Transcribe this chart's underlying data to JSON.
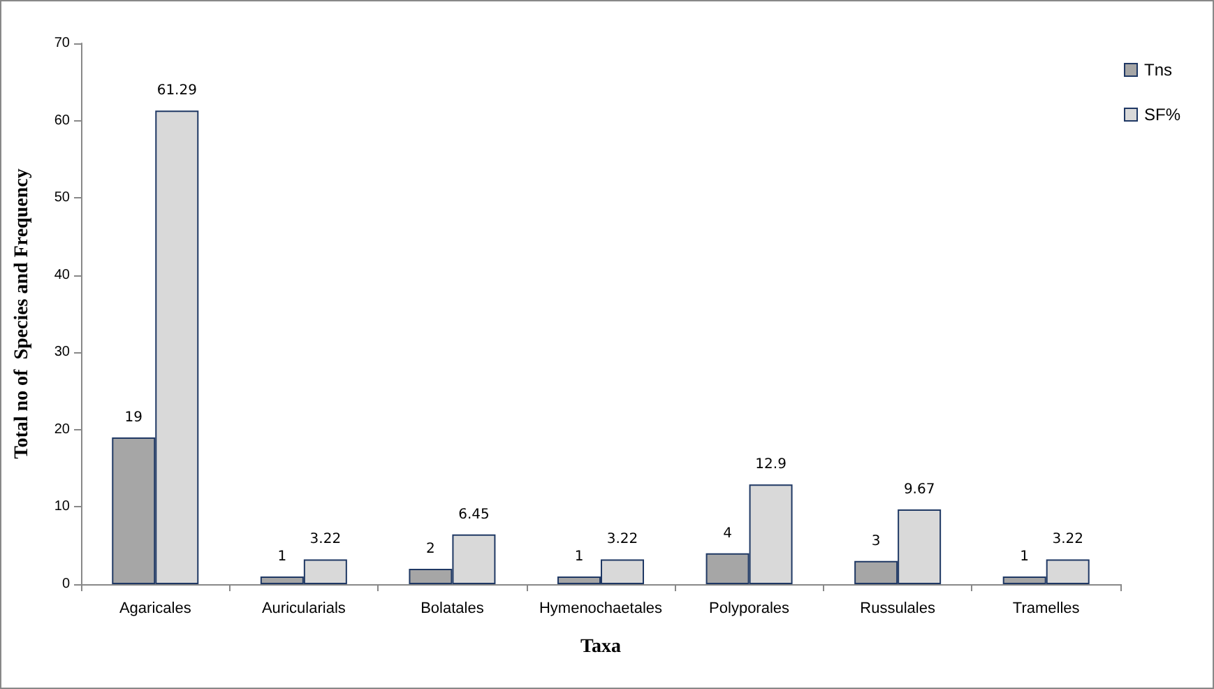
{
  "chart_data": {
    "type": "bar",
    "xlabel": "Taxa",
    "ylabel": "Total no of  Species and Frequency",
    "categories": [
      "Agaricales",
      "Auricularials",
      "Bolatales",
      "Hymenochaetales",
      "Polyporales",
      "Russulales",
      "Tramelles"
    ],
    "series": [
      {
        "name": "Tns",
        "color": "#a6a6a6",
        "values": [
          19,
          1,
          2,
          1,
          4,
          3,
          1
        ]
      },
      {
        "name": "SF%",
        "color": "#d9d9d9",
        "values": [
          61.29,
          3.22,
          6.45,
          3.22,
          12.9,
          9.67,
          3.22
        ]
      }
    ],
    "ylim": [
      0,
      70
    ],
    "yticks": [
      0,
      10,
      20,
      30,
      40,
      50,
      60,
      70
    ],
    "grid": false,
    "legend": "top right",
    "data_labels": true
  }
}
